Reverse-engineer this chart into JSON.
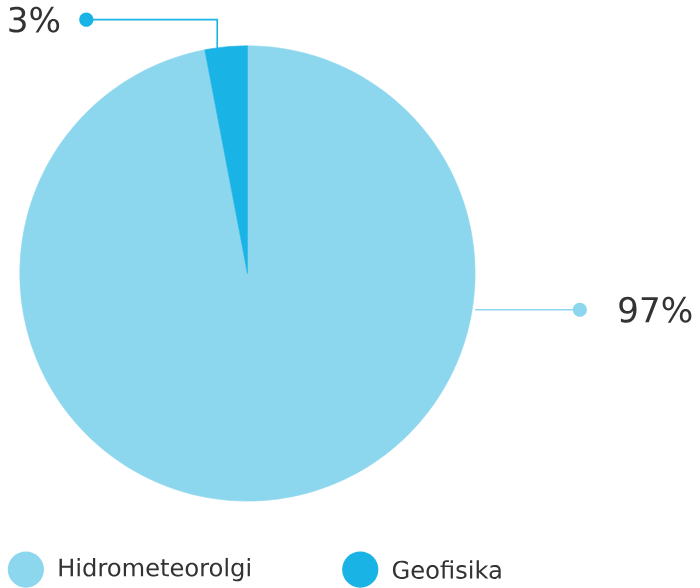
{
  "chart_data": {
    "type": "pie",
    "categories": [
      "Hidrometeorolgi",
      "Geofisika"
    ],
    "values": [
      97,
      3
    ],
    "colors": [
      "#8dd7ee",
      "#1ab3e6"
    ],
    "value_labels": [
      "97%",
      "3%"
    ],
    "legend": "bottom left"
  }
}
